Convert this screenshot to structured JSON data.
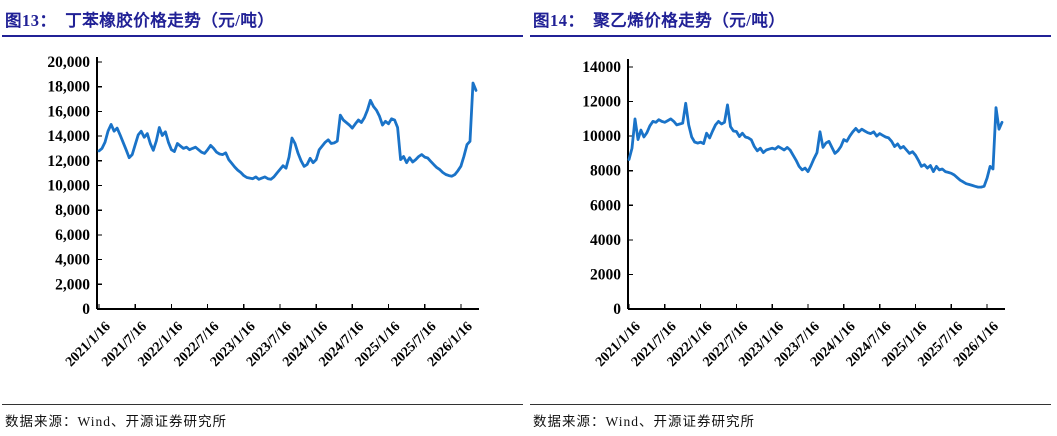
{
  "colors": {
    "title": "#212196",
    "line": "#1a73c8",
    "axis": "#000000",
    "source_text": "#111111",
    "rule": "#333333"
  },
  "chart_data": [
    {
      "type": "line",
      "figure_label": "图13",
      "title": "图13：　丁苯橡胶价格走势（元/吨）",
      "unit": "元/吨",
      "source": "数据来源：Wind、开源证券研究所",
      "xlabel": "",
      "ylabel": "",
      "ylim": [
        0,
        20000
      ],
      "grid": false,
      "legend": "none",
      "line_color": "#1a73c8",
      "ytick_values": [
        0,
        2000,
        4000,
        6000,
        8000,
        10000,
        12000,
        14000,
        16000,
        18000,
        20000
      ],
      "ytick_labels": [
        "0",
        "2,000",
        "4,000",
        "6,000",
        "8,000",
        "10,000",
        "12,000",
        "14,000",
        "16,000",
        "18,000",
        "20,000"
      ],
      "xtick_labels": [
        "2021/1/16",
        "2021/7/16",
        "2022/1/16",
        "2022/7/16",
        "2023/1/16",
        "2023/7/16",
        "2024/1/16",
        "2024/7/16",
        "2025/1/16",
        "2025/7/16",
        "2026/1/16"
      ],
      "xtick_positions": [
        0,
        12,
        24,
        36,
        48,
        60,
        72,
        84,
        96,
        108,
        120
      ],
      "x_start": "2021/1/16",
      "x_step": "half-month",
      "series": [
        {
          "name": "丁苯橡胶价格",
          "values": [
            12800,
            13000,
            13500,
            14400,
            14950,
            14400,
            14650,
            14100,
            13500,
            12900,
            12250,
            12500,
            13300,
            14100,
            14400,
            13900,
            14200,
            13400,
            12850,
            13600,
            14700,
            14050,
            14350,
            13500,
            12900,
            12750,
            13400,
            13200,
            13000,
            13100,
            12900,
            13000,
            13100,
            12900,
            12700,
            12600,
            12900,
            13250,
            13000,
            12700,
            12550,
            12500,
            12650,
            12100,
            11800,
            11500,
            11250,
            11050,
            10800,
            10650,
            10600,
            10550,
            10700,
            10500,
            10600,
            10700,
            10550,
            10500,
            10700,
            11000,
            11300,
            11600,
            11400,
            12300,
            13850,
            13400,
            12600,
            12000,
            11550,
            11700,
            12200,
            11850,
            12100,
            12900,
            13200,
            13500,
            13700,
            13400,
            13450,
            13600,
            15700,
            15300,
            15100,
            14900,
            14650,
            15000,
            15300,
            15100,
            15500,
            16100,
            16900,
            16400,
            16100,
            15600,
            14900,
            15200,
            15000,
            15400,
            15300,
            14700,
            12100,
            12350,
            11850,
            12250,
            11900,
            12100,
            12350,
            12500,
            12300,
            12230,
            11950,
            11690,
            11450,
            11290,
            11050,
            10890,
            10800,
            10750,
            10890,
            11200,
            11560,
            12360,
            13310,
            13580,
            18300,
            17700
          ]
        }
      ]
    },
    {
      "type": "line",
      "figure_label": "图14",
      "title": "图14：　聚乙烯价格走势（元/吨）",
      "unit": "元/吨",
      "source": "数据来源：Wind、开源证券研究所",
      "xlabel": "",
      "ylabel": "",
      "ylim": [
        0,
        14000
      ],
      "grid": false,
      "legend": "none",
      "line_color": "#1a73c8",
      "ytick_values": [
        0,
        2000,
        4000,
        6000,
        8000,
        10000,
        12000,
        14000
      ],
      "ytick_labels": [
        "0",
        "2000",
        "4000",
        "6000",
        "8000",
        "10000",
        "12000",
        "14000"
      ],
      "xtick_labels": [
        "2021/1/16",
        "2021/7/16",
        "2022/1/16",
        "2022/7/16",
        "2023/1/16",
        "2023/7/16",
        "2024/1/16",
        "2024/7/16",
        "2025/1/16",
        "2025/7/16",
        "2026/1/16"
      ],
      "xtick_positions": [
        0,
        12,
        24,
        36,
        48,
        60,
        72,
        84,
        96,
        108,
        120
      ],
      "x_start": "2021/1/16",
      "x_step": "half-month",
      "series": [
        {
          "name": "聚乙烯价格",
          "values": [
            8650,
            9300,
            11000,
            9800,
            10350,
            9950,
            10200,
            10600,
            10850,
            10800,
            10950,
            10850,
            10800,
            10900,
            11000,
            10850,
            10650,
            10700,
            10750,
            11900,
            10650,
            9950,
            9660,
            9600,
            9650,
            9570,
            10170,
            9900,
            10300,
            10650,
            10850,
            10700,
            10800,
            11810,
            10550,
            10300,
            10270,
            9980,
            10170,
            9950,
            9900,
            9790,
            9400,
            9150,
            9300,
            9050,
            9200,
            9250,
            9300,
            9250,
            9400,
            9300,
            9200,
            9350,
            9200,
            8900,
            8600,
            8250,
            8050,
            8150,
            7950,
            8300,
            8700,
            9050,
            10250,
            9350,
            9600,
            9700,
            9350,
            9000,
            9150,
            9400,
            9800,
            9700,
            10000,
            10250,
            10450,
            10250,
            10400,
            10300,
            10200,
            10150,
            10250,
            10000,
            10150,
            10050,
            9950,
            9900,
            9700,
            9400,
            9550,
            9300,
            9400,
            9200,
            9000,
            9100,
            8900,
            8600,
            8250,
            8350,
            8150,
            8300,
            7950,
            8250,
            8050,
            8100,
            7950,
            7900,
            7850,
            7750,
            7600,
            7450,
            7350,
            7250,
            7200,
            7150,
            7100,
            7050,
            7050,
            7100,
            7580,
            8250,
            8100,
            11650,
            10400,
            10800
          ]
        }
      ]
    }
  ]
}
